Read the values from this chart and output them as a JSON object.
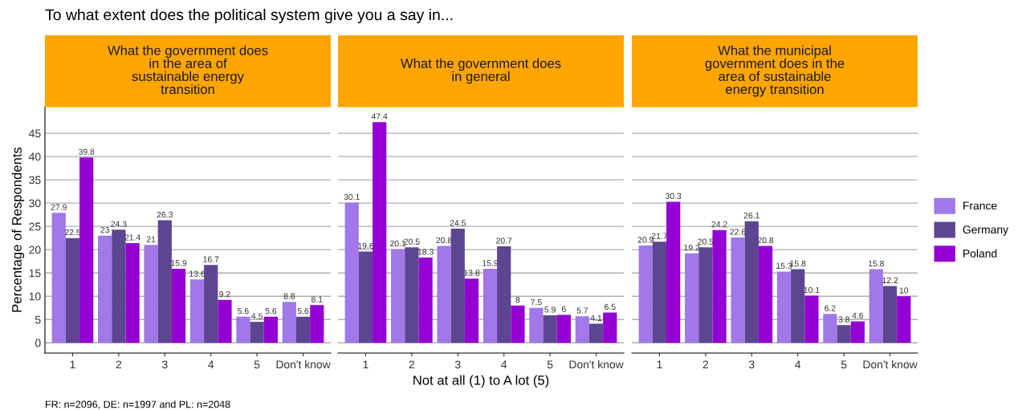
{
  "chart_data": [
    {
      "type": "bar",
      "title": "What the government does\nin the area of\nsustainable energy\ntransition",
      "ylabel": "Percentage of Respondents",
      "categories": [
        "1",
        "2",
        "3",
        "4",
        "5",
        "Don't know"
      ],
      "series": [
        {
          "color": "#a078e8",
          "values": [
            27.9,
            23,
            21,
            13.6,
            5.6,
            8.8
          ]
        },
        {
          "color": "#5e4592",
          "values": [
            22.5,
            24.3,
            26.3,
            16.7,
            4.5,
            5.6
          ]
        },
        {
          "color": "#9400d3",
          "values": [
            39.8,
            21.4,
            15.9,
            9.2,
            5.6,
            8.1
          ]
        }
      ],
      "ylim": [
        -2.2,
        50.7
      ],
      "yticks": [
        0,
        5,
        10,
        15,
        20,
        25,
        30,
        35,
        40,
        45
      ],
      "grid": "y",
      "data_labels": true,
      "annotations": [
        "To what extent does the political system give you a say in...",
        "FR: n=2096, DE: n=1997 and PL: n=2048"
      ]
    },
    {
      "type": "bar",
      "title": "What the government does\nin general",
      "xlabel": "Not at all (1) to A lot (5)",
      "categories": [
        "1",
        "2",
        "3",
        "4",
        "5",
        "Don't know"
      ],
      "series": [
        {
          "color": "#a078e8",
          "values": [
            30.1,
            20.1,
            20.8,
            15.9,
            7.5,
            5.7
          ]
        },
        {
          "color": "#5e4592",
          "values": [
            19.6,
            20.5,
            24.5,
            20.7,
            5.9,
            4.1
          ]
        },
        {
          "color": "#9400d3",
          "values": [
            47.4,
            18.3,
            13.8,
            8,
            6,
            6.5
          ]
        }
      ],
      "ylim": [
        -2.2,
        50.7
      ],
      "yticks": [
        0,
        5,
        10,
        15,
        20,
        25,
        30,
        35,
        40,
        45
      ],
      "grid": "y",
      "data_labels": true,
      "tick_labels": "x"
    },
    {
      "type": "bar",
      "title": "What the municipal\ngovernment does in the\narea of sustainable\nenergy transition",
      "categories": [
        "1",
        "2",
        "3",
        "4",
        "5",
        "Don't know"
      ],
      "series": [
        {
          "name": "France",
          "color": "#a078e8",
          "values": [
            20.9,
            19.2,
            22.6,
            15.3,
            6.2,
            15.8
          ]
        },
        {
          "name": "Germany",
          "color": "#5e4592",
          "values": [
            21.7,
            20.5,
            26.1,
            15.8,
            3.8,
            12.2
          ]
        },
        {
          "name": "Poland",
          "color": "#9400d3",
          "values": [
            30.3,
            24.2,
            20.8,
            10.1,
            4.6,
            10
          ]
        }
      ],
      "ylim": [
        -2.2,
        50.7
      ],
      "yticks": [
        0,
        5,
        10,
        15,
        20,
        25,
        30,
        35,
        40,
        45
      ],
      "grid": "y",
      "data_labels": true,
      "tick_labels": "x",
      "legend": "right"
    }
  ]
}
